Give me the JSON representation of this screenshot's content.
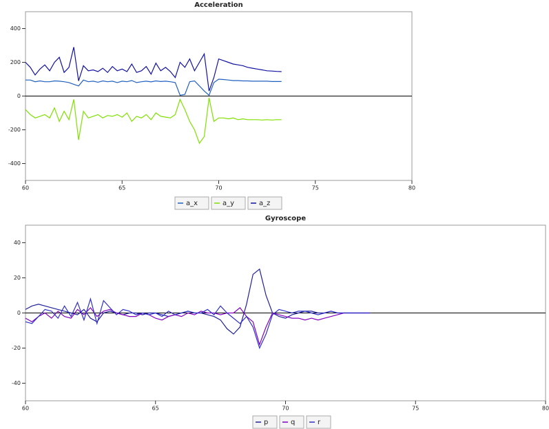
{
  "chart_data": [
    {
      "type": "line",
      "title": "Acceleration",
      "x": [
        60,
        60.25,
        60.5,
        60.75,
        61,
        61.25,
        61.5,
        61.75,
        62,
        62.25,
        62.5,
        62.75,
        63,
        63.25,
        63.5,
        63.75,
        64,
        64.25,
        64.5,
        64.75,
        65,
        65.25,
        65.5,
        65.75,
        66,
        66.25,
        66.5,
        66.75,
        67,
        67.25,
        67.5,
        67.75,
        68,
        68.25,
        68.5,
        68.75,
        69,
        69.25,
        69.5,
        69.75,
        70,
        70.25,
        70.5,
        70.75,
        71,
        71.25,
        71.5,
        71.75,
        72,
        72.25,
        72.5,
        72.75,
        73,
        73.25
      ],
      "series": [
        {
          "name": "a_x",
          "color": "#1f5fbf",
          "values": [
            95,
            95,
            85,
            90,
            85,
            85,
            90,
            88,
            85,
            80,
            70,
            60,
            95,
            85,
            88,
            82,
            90,
            85,
            88,
            80,
            88,
            85,
            92,
            80,
            85,
            88,
            84,
            90,
            86,
            88,
            85,
            80,
            5,
            10,
            85,
            90,
            60,
            30,
            5,
            80,
            100,
            98,
            95,
            92,
            92,
            90,
            90,
            88,
            88,
            88,
            88,
            86,
            86,
            86
          ]
        },
        {
          "name": "a_y",
          "color": "#80e000",
          "values": [
            -80,
            -110,
            -130,
            -120,
            -110,
            -130,
            -70,
            -150,
            -90,
            -140,
            -20,
            -260,
            -90,
            -130,
            -120,
            -110,
            -130,
            -115,
            -120,
            -110,
            -125,
            -100,
            -150,
            -120,
            -130,
            -110,
            -140,
            -100,
            -120,
            -125,
            -130,
            -110,
            -20,
            -80,
            -150,
            -200,
            -280,
            -240,
            -10,
            -150,
            -130,
            -130,
            -135,
            -130,
            -140,
            -135,
            -140,
            -140,
            -140,
            -142,
            -140,
            -142,
            -140,
            -140
          ]
        },
        {
          "name": "a_z",
          "color": "#1010a0",
          "values": [
            200,
            170,
            125,
            160,
            185,
            150,
            200,
            230,
            140,
            170,
            290,
            90,
            180,
            150,
            155,
            145,
            165,
            140,
            175,
            150,
            160,
            145,
            190,
            140,
            150,
            175,
            130,
            195,
            150,
            170,
            145,
            110,
            200,
            170,
            220,
            150,
            200,
            250,
            30,
            110,
            220,
            210,
            200,
            190,
            185,
            180,
            170,
            165,
            160,
            155,
            150,
            148,
            146,
            145
          ]
        }
      ],
      "xlim": [
        60,
        80
      ],
      "xticks": [
        60,
        65,
        70,
        75,
        80
      ],
      "ylim": [
        -500,
        500
      ],
      "yticks": [
        -400,
        -200,
        0,
        200,
        400
      ]
    },
    {
      "type": "line",
      "title": "Gyroscope",
      "x": [
        60,
        60.25,
        60.5,
        60.75,
        61,
        61.25,
        61.5,
        61.75,
        62,
        62.25,
        62.5,
        62.75,
        63,
        63.25,
        63.5,
        63.75,
        64,
        64.25,
        64.5,
        64.75,
        65,
        65.25,
        65.5,
        65.75,
        66,
        66.25,
        66.5,
        66.75,
        67,
        67.25,
        67.5,
        67.75,
        68,
        68.25,
        68.5,
        68.75,
        69,
        69.25,
        69.5,
        69.75,
        70,
        70.25,
        70.5,
        70.75,
        71,
        71.25,
        71.5,
        71.75,
        72,
        72.25,
        72.5,
        72.75,
        73,
        73.25
      ],
      "series": [
        {
          "name": "p",
          "color": "#20209a",
          "values": [
            2,
            4,
            5,
            4,
            3,
            2,
            1,
            0,
            -1,
            2,
            -3,
            -5,
            0,
            1,
            0,
            -1,
            0,
            0,
            -1,
            0,
            0,
            -1,
            -2,
            -1,
            0,
            1,
            0,
            0,
            -1,
            -2,
            -4,
            -9,
            -12,
            -8,
            5,
            22,
            25,
            10,
            0,
            -2,
            -3,
            -1,
            0,
            1,
            1,
            0,
            0,
            1,
            0,
            0,
            0,
            0,
            0,
            0
          ]
        },
        {
          "name": "q",
          "color": "#8000c0",
          "values": [
            -3,
            -5,
            -2,
            0,
            -3,
            1,
            -2,
            -3,
            2,
            -1,
            3,
            -2,
            1,
            2,
            0,
            -1,
            -2,
            -2,
            0,
            -1,
            -3,
            -4,
            -2,
            -1,
            -2,
            0,
            -1,
            1,
            0,
            0,
            -1,
            0,
            0,
            3,
            -2,
            -5,
            -18,
            -8,
            0,
            -1,
            -2,
            -3,
            -3,
            -4,
            -3,
            -4,
            -3,
            -2,
            -1,
            0,
            0,
            0,
            0,
            0
          ]
        },
        {
          "name": "r",
          "color": "#3030c8",
          "values": [
            -5,
            -6,
            -2,
            2,
            1,
            -3,
            4,
            -2,
            6,
            -4,
            8,
            -6,
            7,
            3,
            -1,
            2,
            1,
            -1,
            0,
            -1,
            0,
            -2,
            1,
            -1,
            0,
            1,
            0,
            0,
            2,
            -1,
            4,
            0,
            -3,
            -6,
            -2,
            -8,
            -20,
            -12,
            -1,
            2,
            1,
            0,
            1,
            1,
            0,
            -1,
            0,
            1,
            0,
            0,
            0,
            0,
            0,
            0
          ]
        }
      ],
      "xlim": [
        60,
        80
      ],
      "xticks": [
        60,
        65,
        70,
        75,
        80
      ],
      "ylim": [
        -50,
        50
      ],
      "yticks": [
        -40,
        -20,
        0,
        20,
        40
      ]
    }
  ]
}
